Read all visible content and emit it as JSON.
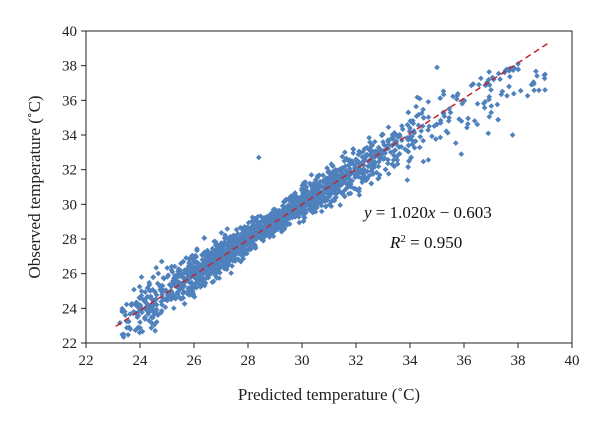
{
  "chart_data": {
    "type": "scatter",
    "xlabel": "Predicted temperature (˚C)",
    "ylabel": "Observed temperature (˚C)",
    "xlim": [
      22,
      40
    ],
    "ylim": [
      22,
      40
    ],
    "xticks": [
      "22",
      "24",
      "26",
      "28",
      "30",
      "32",
      "34",
      "36",
      "38",
      "40"
    ],
    "yticks": [
      "22",
      "24",
      "26",
      "28",
      "30",
      "32",
      "34",
      "36",
      "38",
      "40"
    ],
    "grid": false,
    "legend": "none",
    "colors": {
      "points": "#4f81bd",
      "fit_line": "#c0262d"
    },
    "fit": {
      "slope": 1.02,
      "intercept": -0.603,
      "x_range": [
        23.1,
        39.1
      ]
    },
    "annotations": {
      "equation": "y = 1.020x − 0.603",
      "r_squared": "R2 = 0.950"
    },
    "series": [
      {
        "point_count_approx": 2000,
        "x_range": [
          23.2,
          39.1
        ],
        "y_range": [
          22.3,
          38.0
        ],
        "sample_points": [
          [
            23.4,
            22.5
          ],
          [
            23.6,
            22.9
          ],
          [
            24.0,
            23.2
          ],
          [
            24.0,
            24.2
          ],
          [
            24.5,
            23.8
          ],
          [
            25.0,
            24.6
          ],
          [
            25.5,
            25.3
          ],
          [
            26.0,
            26.2
          ],
          [
            26.5,
            25.8
          ],
          [
            27.0,
            27.3
          ],
          [
            27.5,
            27.8
          ],
          [
            28.0,
            28.4
          ],
          [
            28.5,
            29.0
          ],
          [
            29.0,
            29.5
          ],
          [
            28.4,
            32.7
          ],
          [
            29.5,
            30.3
          ],
          [
            30.0,
            30.8
          ],
          [
            30.5,
            31.4
          ],
          [
            31.0,
            31.9
          ],
          [
            31.5,
            32.1
          ],
          [
            32.0,
            32.6
          ],
          [
            32.5,
            33.2
          ],
          [
            33.0,
            33.6
          ],
          [
            33.5,
            34.0
          ],
          [
            34.0,
            34.4
          ],
          [
            34.5,
            35.0
          ],
          [
            35.0,
            37.9
          ],
          [
            35.5,
            35.3
          ],
          [
            36.0,
            36.0
          ],
          [
            36.5,
            35.8
          ],
          [
            37.0,
            36.6
          ],
          [
            37.5,
            37.6
          ],
          [
            38.0,
            38.1
          ],
          [
            38.5,
            36.9
          ],
          [
            39.0,
            37.5
          ],
          [
            39.0,
            36.6
          ],
          [
            36.9,
            34.1
          ],
          [
            37.8,
            34.0
          ],
          [
            35.9,
            32.9
          ],
          [
            33.9,
            31.4
          ]
        ]
      }
    ]
  }
}
